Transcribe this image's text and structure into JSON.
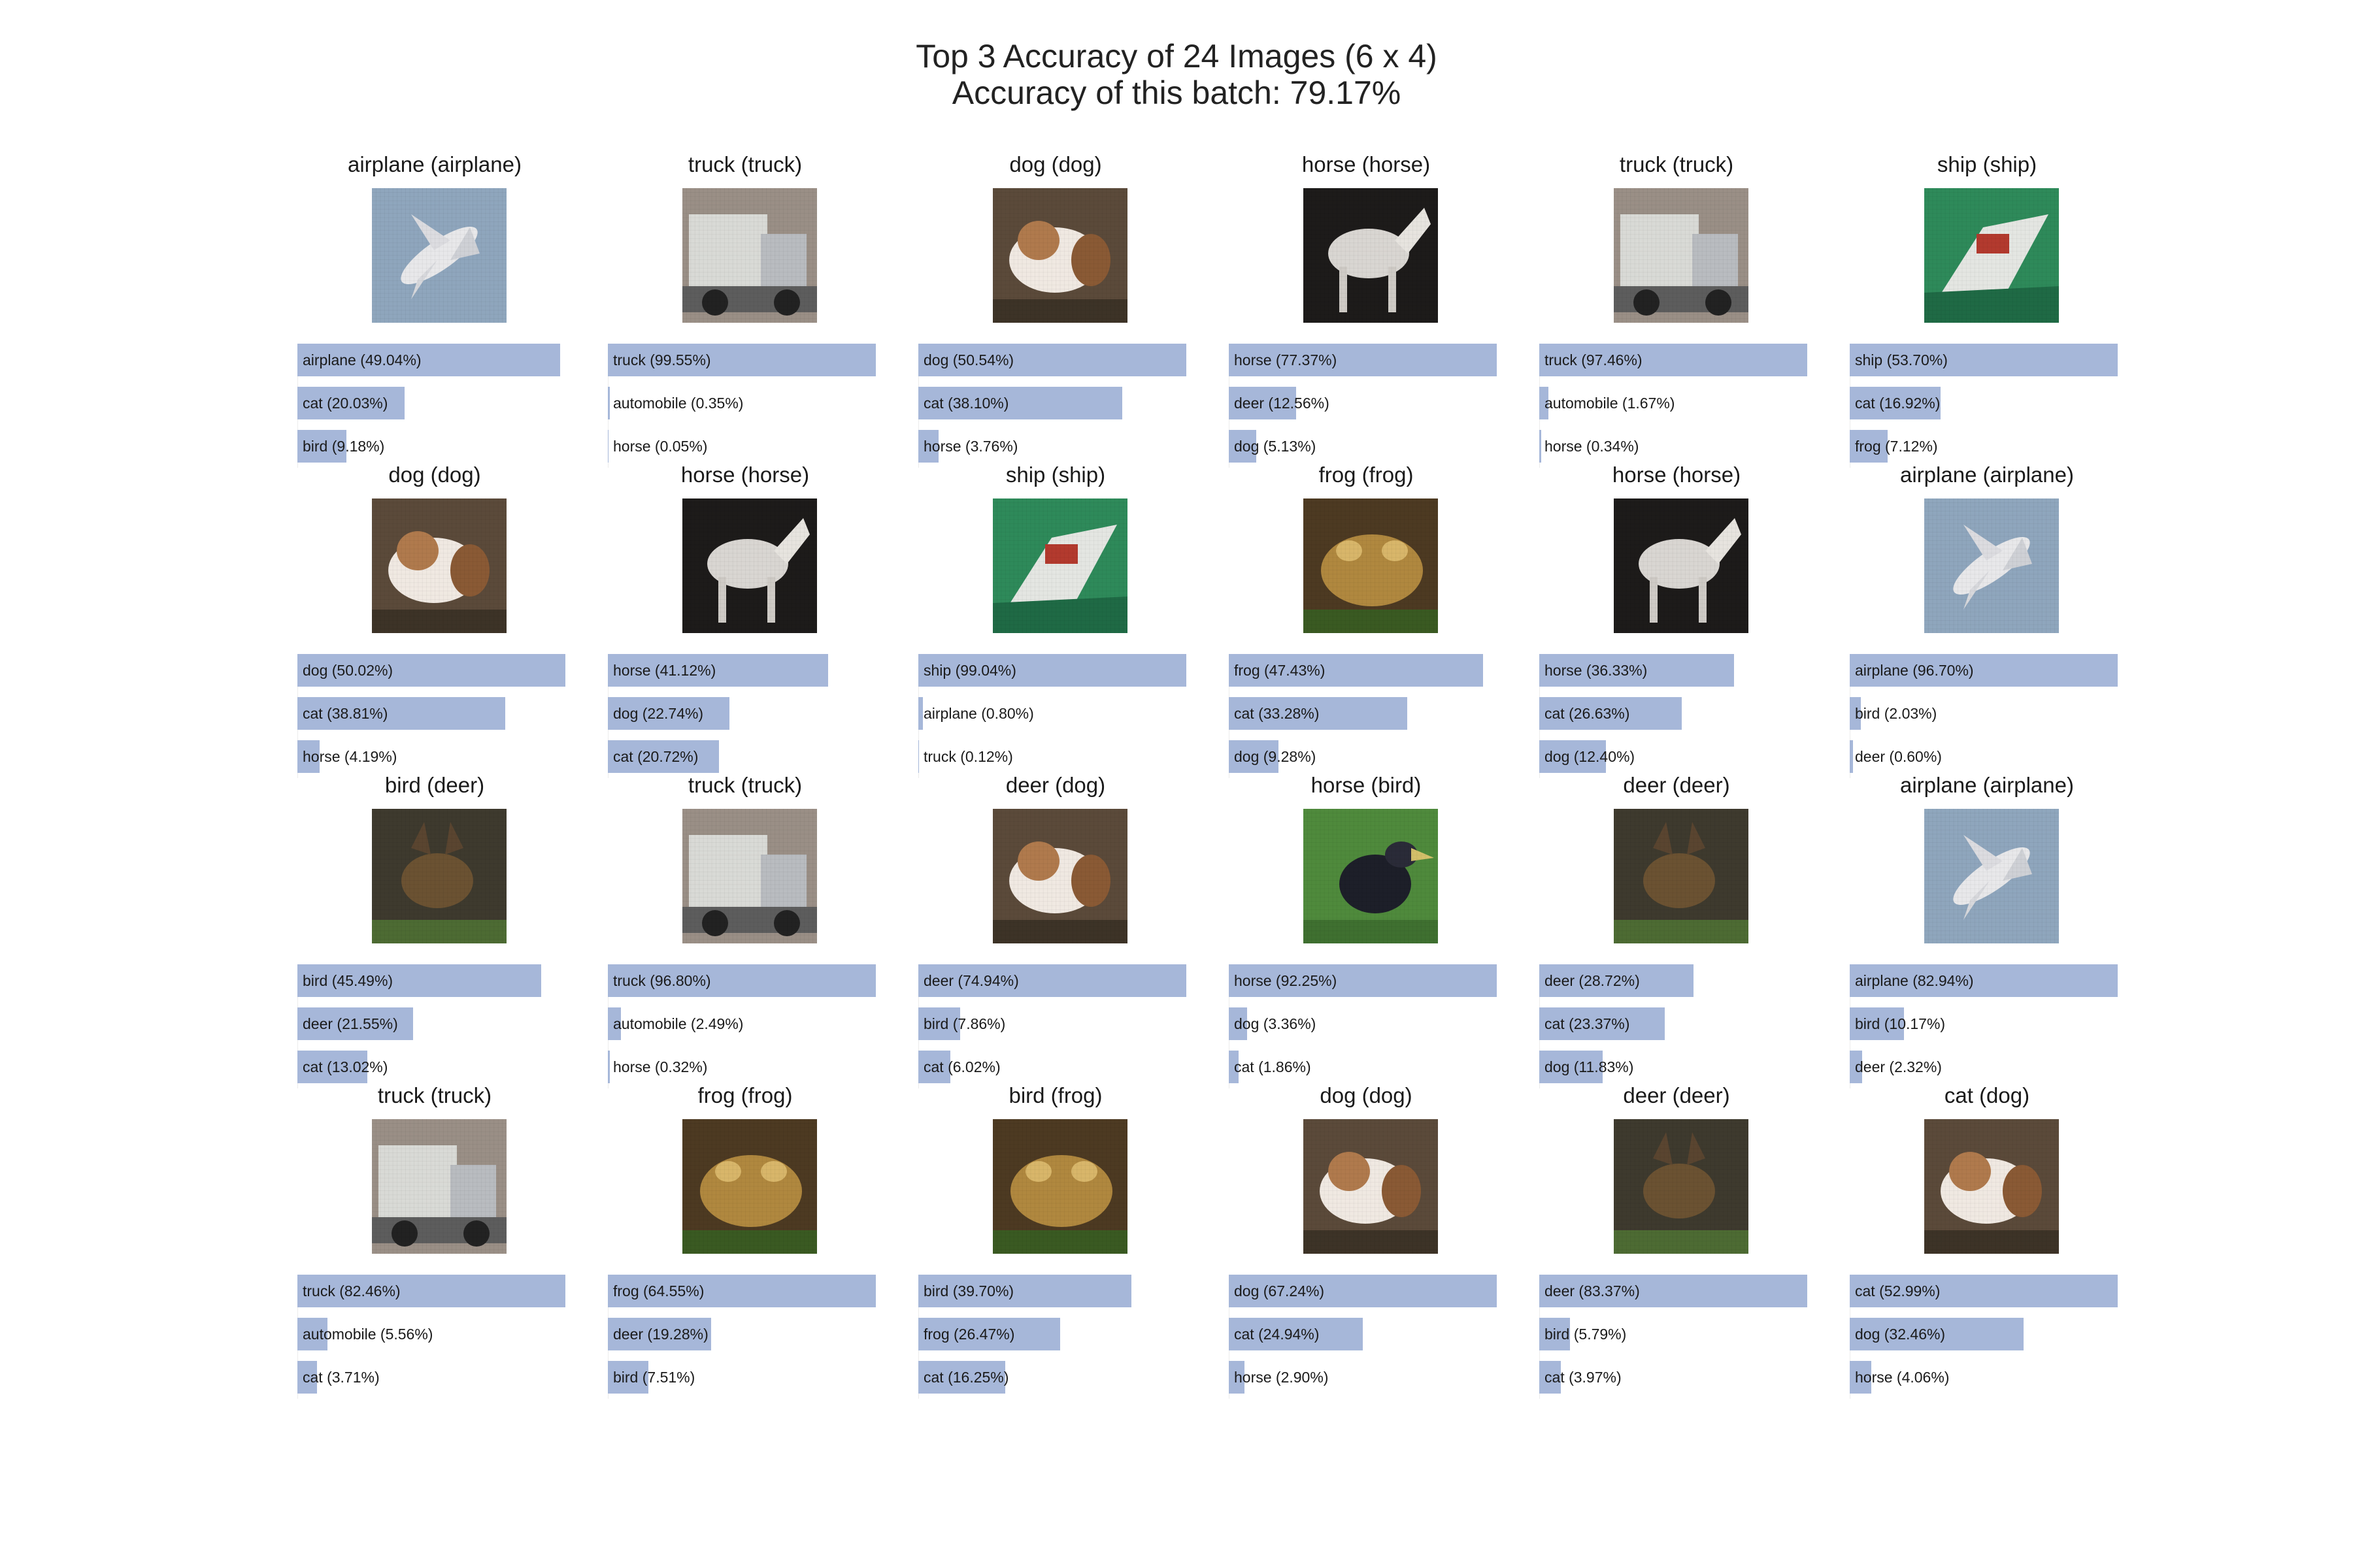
{
  "title_line1": "Top 3 Accuracy of 24 Images (6 x 4)",
  "title_line2": "Accuracy of this batch: 79.17%",
  "chart_data": {
    "type": "bar",
    "title": "Top 3 Accuracy of 24 Images (6 x 4)",
    "subtitle": "Accuracy of this batch: 79.17%",
    "grid": false,
    "bar_color": "#a6b7d9",
    "xlim": [
      0,
      50
    ],
    "panels": [
      {
        "title": "airplane (airplane)",
        "image": "airplane",
        "predictions": [
          {
            "label": "airplane",
            "text": "airplane (49.04%)",
            "value": 49.04
          },
          {
            "label": "cat",
            "text": "cat (20.03%)",
            "value": 20.03
          },
          {
            "label": "bird",
            "text": "bird (9.18%)",
            "value": 9.18
          }
        ]
      },
      {
        "title": "truck (truck)",
        "image": "truck",
        "predictions": [
          {
            "label": "truck",
            "text": "truck (99.55%)",
            "value": 99.55
          },
          {
            "label": "automobile",
            "text": "automobile (0.35%)",
            "value": 0.35
          },
          {
            "label": "horse",
            "text": "horse (0.05%)",
            "value": 0.05
          }
        ]
      },
      {
        "title": "dog (dog)",
        "image": "dog",
        "predictions": [
          {
            "label": "dog",
            "text": "dog (50.54%)",
            "value": 50.54
          },
          {
            "label": "cat",
            "text": "cat (38.10%)",
            "value": 38.1
          },
          {
            "label": "horse",
            "text": "horse (3.76%)",
            "value": 3.76
          }
        ]
      },
      {
        "title": "horse (horse)",
        "image": "horse",
        "predictions": [
          {
            "label": "horse",
            "text": "horse (77.37%)",
            "value": 77.37
          },
          {
            "label": "deer",
            "text": "deer (12.56%)",
            "value": 12.56
          },
          {
            "label": "dog",
            "text": "dog (5.13%)",
            "value": 5.13
          }
        ]
      },
      {
        "title": "truck (truck)",
        "image": "truck",
        "predictions": [
          {
            "label": "truck",
            "text": "truck (97.46%)",
            "value": 97.46
          },
          {
            "label": "automobile",
            "text": "automobile (1.67%)",
            "value": 1.67
          },
          {
            "label": "horse",
            "text": "horse (0.34%)",
            "value": 0.34
          }
        ]
      },
      {
        "title": "ship (ship)",
        "image": "ship",
        "predictions": [
          {
            "label": "ship",
            "text": "ship (53.70%)",
            "value": 53.7
          },
          {
            "label": "cat",
            "text": "cat (16.92%)",
            "value": 16.92
          },
          {
            "label": "frog",
            "text": "frog (7.12%)",
            "value": 7.12
          }
        ]
      },
      {
        "title": "dog (dog)",
        "image": "dog",
        "predictions": [
          {
            "label": "dog",
            "text": "dog (50.02%)",
            "value": 50.02
          },
          {
            "label": "cat",
            "text": "cat (38.81%)",
            "value": 38.81
          },
          {
            "label": "horse",
            "text": "horse (4.19%)",
            "value": 4.19
          }
        ]
      },
      {
        "title": "horse (horse)",
        "image": "horse",
        "predictions": [
          {
            "label": "horse",
            "text": "horse (41.12%)",
            "value": 41.12
          },
          {
            "label": "dog",
            "text": "dog (22.74%)",
            "value": 22.74
          },
          {
            "label": "cat",
            "text": "cat (20.72%)",
            "value": 20.72
          }
        ]
      },
      {
        "title": "ship (ship)",
        "image": "ship",
        "predictions": [
          {
            "label": "ship",
            "text": "ship (99.04%)",
            "value": 99.04
          },
          {
            "label": "airplane",
            "text": "airplane (0.80%)",
            "value": 0.8
          },
          {
            "label": "truck",
            "text": "truck (0.12%)",
            "value": 0.12
          }
        ]
      },
      {
        "title": "frog (frog)",
        "image": "frog",
        "predictions": [
          {
            "label": "frog",
            "text": "frog (47.43%)",
            "value": 47.43
          },
          {
            "label": "cat",
            "text": "cat (33.28%)",
            "value": 33.28
          },
          {
            "label": "dog",
            "text": "dog (9.28%)",
            "value": 9.28
          }
        ]
      },
      {
        "title": "horse (horse)",
        "image": "horse",
        "predictions": [
          {
            "label": "horse",
            "text": "horse (36.33%)",
            "value": 36.33
          },
          {
            "label": "cat",
            "text": "cat (26.63%)",
            "value": 26.63
          },
          {
            "label": "dog",
            "text": "dog (12.40%)",
            "value": 12.4
          }
        ]
      },
      {
        "title": "airplane (airplane)",
        "image": "airplane",
        "predictions": [
          {
            "label": "airplane",
            "text": "airplane (96.70%)",
            "value": 96.7
          },
          {
            "label": "bird",
            "text": "bird (2.03%)",
            "value": 2.03
          },
          {
            "label": "deer",
            "text": "deer (0.60%)",
            "value": 0.6
          }
        ]
      },
      {
        "title": "bird (deer)",
        "image": "deer",
        "predictions": [
          {
            "label": "bird",
            "text": "bird (45.49%)",
            "value": 45.49
          },
          {
            "label": "deer",
            "text": "deer (21.55%)",
            "value": 21.55
          },
          {
            "label": "cat",
            "text": "cat (13.02%)",
            "value": 13.02
          }
        ]
      },
      {
        "title": "truck (truck)",
        "image": "truck",
        "predictions": [
          {
            "label": "truck",
            "text": "truck (96.80%)",
            "value": 96.8
          },
          {
            "label": "automobile",
            "text": "automobile (2.49%)",
            "value": 2.49
          },
          {
            "label": "horse",
            "text": "horse (0.32%)",
            "value": 0.32
          }
        ]
      },
      {
        "title": "deer (dog)",
        "image": "dog",
        "predictions": [
          {
            "label": "deer",
            "text": "deer (74.94%)",
            "value": 74.94
          },
          {
            "label": "bird",
            "text": "bird (7.86%)",
            "value": 7.86
          },
          {
            "label": "cat",
            "text": "cat (6.02%)",
            "value": 6.02
          }
        ]
      },
      {
        "title": "horse (bird)",
        "image": "bird",
        "predictions": [
          {
            "label": "horse",
            "text": "horse (92.25%)",
            "value": 92.25
          },
          {
            "label": "dog",
            "text": "dog (3.36%)",
            "value": 3.36
          },
          {
            "label": "cat",
            "text": "cat (1.86%)",
            "value": 1.86
          }
        ]
      },
      {
        "title": "deer (deer)",
        "image": "deer",
        "predictions": [
          {
            "label": "deer",
            "text": "deer (28.72%)",
            "value": 28.72
          },
          {
            "label": "cat",
            "text": "cat (23.37%)",
            "value": 23.37
          },
          {
            "label": "dog",
            "text": "dog (11.83%)",
            "value": 11.83
          }
        ]
      },
      {
        "title": "airplane (airplane)",
        "image": "airplane",
        "predictions": [
          {
            "label": "airplane",
            "text": "airplane (82.94%)",
            "value": 82.94
          },
          {
            "label": "bird",
            "text": "bird (10.17%)",
            "value": 10.17
          },
          {
            "label": "deer",
            "text": "deer (2.32%)",
            "value": 2.32
          }
        ]
      },
      {
        "title": "truck (truck)",
        "image": "truck",
        "predictions": [
          {
            "label": "truck",
            "text": "truck (82.46%)",
            "value": 82.46
          },
          {
            "label": "automobile",
            "text": "automobile (5.56%)",
            "value": 5.56
          },
          {
            "label": "cat",
            "text": "cat (3.71%)",
            "value": 3.71
          }
        ]
      },
      {
        "title": "frog (frog)",
        "image": "frog",
        "predictions": [
          {
            "label": "frog",
            "text": "frog (64.55%)",
            "value": 64.55
          },
          {
            "label": "deer",
            "text": "deer (19.28%)",
            "value": 19.28
          },
          {
            "label": "bird",
            "text": "bird (7.51%)",
            "value": 7.51
          }
        ]
      },
      {
        "title": "bird (frog)",
        "image": "frog",
        "predictions": [
          {
            "label": "bird",
            "text": "bird (39.70%)",
            "value": 39.7
          },
          {
            "label": "frog",
            "text": "frog (26.47%)",
            "value": 26.47
          },
          {
            "label": "cat",
            "text": "cat (16.25%)",
            "value": 16.25
          }
        ]
      },
      {
        "title": "dog (dog)",
        "image": "dog",
        "predictions": [
          {
            "label": "dog",
            "text": "dog (67.24%)",
            "value": 67.24
          },
          {
            "label": "cat",
            "text": "cat (24.94%)",
            "value": 24.94
          },
          {
            "label": "horse",
            "text": "horse (2.90%)",
            "value": 2.9
          }
        ]
      },
      {
        "title": "deer (deer)",
        "image": "deer",
        "predictions": [
          {
            "label": "deer",
            "text": "deer (83.37%)",
            "value": 83.37
          },
          {
            "label": "bird",
            "text": "bird (5.79%)",
            "value": 5.79
          },
          {
            "label": "cat",
            "text": "cat (3.97%)",
            "value": 3.97
          }
        ]
      },
      {
        "title": "cat (dog)",
        "image": "dog",
        "predictions": [
          {
            "label": "cat",
            "text": "cat (52.99%)",
            "value": 52.99
          },
          {
            "label": "dog",
            "text": "dog (32.46%)",
            "value": 32.46
          },
          {
            "label": "horse",
            "text": "horse (4.06%)",
            "value": 4.06
          }
        ]
      }
    ]
  }
}
